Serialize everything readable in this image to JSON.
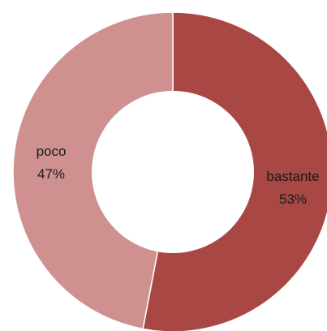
{
  "chart_data": {
    "type": "pie",
    "variant": "donut",
    "title": "",
    "legend": "none",
    "slices": [
      {
        "label": "bastante",
        "value": 53,
        "value_label": "53%",
        "color": "#a84744"
      },
      {
        "label": "poco",
        "value": 47,
        "value_label": "47%",
        "color": "#cf9190"
      }
    ]
  }
}
